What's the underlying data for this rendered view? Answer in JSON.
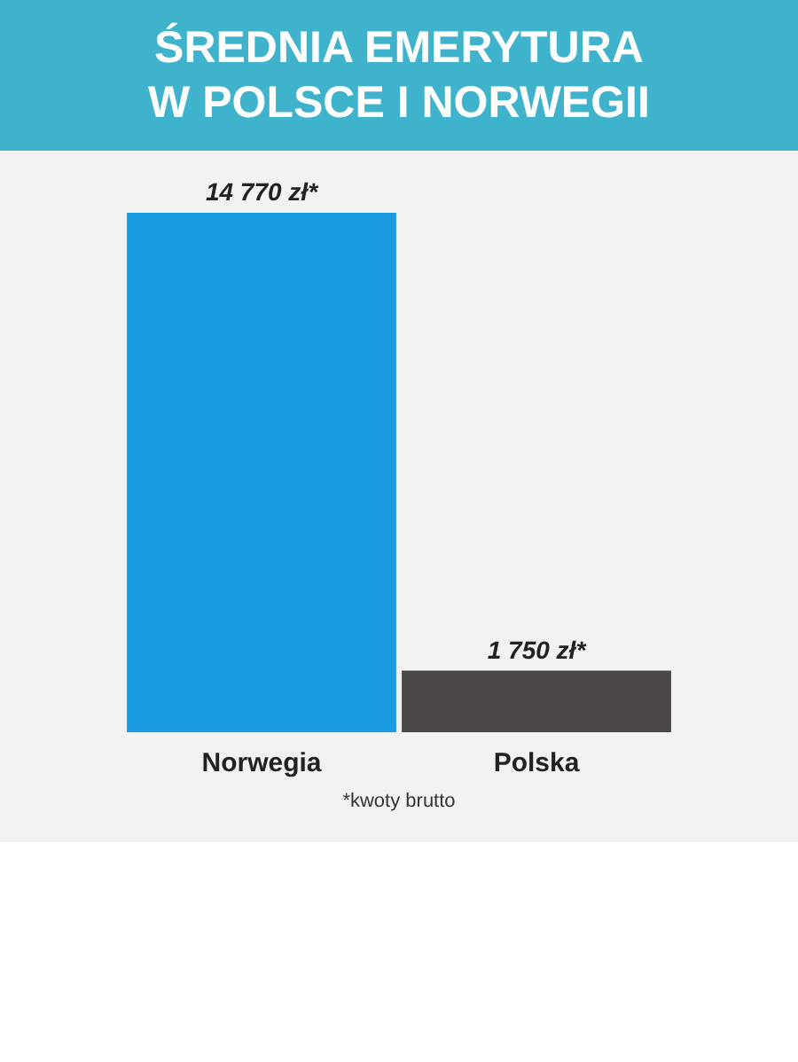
{
  "chart_data": {
    "type": "bar",
    "title": "ŚREDNIA EMERYTURA\nW POLSCE I NORWEGII",
    "categories": [
      "Norwegia",
      "Polska"
    ],
    "values": [
      14770,
      1750
    ],
    "colors": [
      "#1a9be0",
      "#4a4646"
    ],
    "value_labels": [
      "14 770 zł*",
      "1 750 zł*"
    ],
    "annotations": [
      "*kwoty brutto"
    ]
  }
}
